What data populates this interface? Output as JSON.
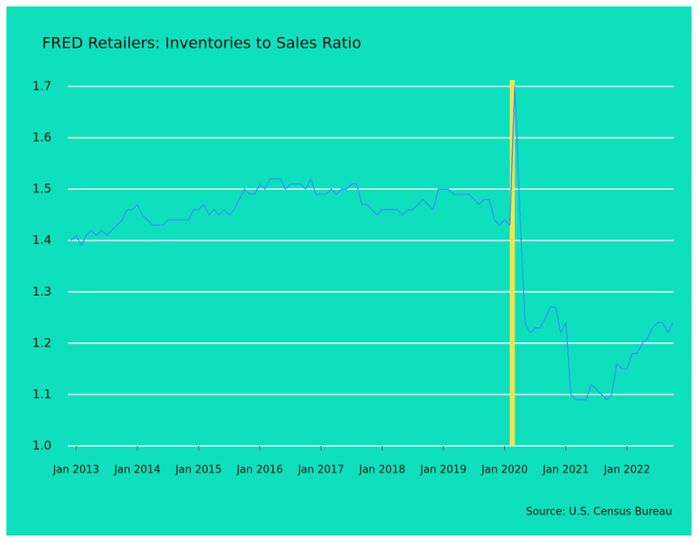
{
  "chart_data": {
    "type": "line",
    "title": "FRED Retailers: Inventories to Sales Ratio",
    "source": "Source: U.S. Census Bureau",
    "background": "#0ee0bd",
    "highlight": {
      "x": [
        "2020-02",
        "2020-03"
      ],
      "color": "#f7e24a"
    },
    "x": [
      "2012-12",
      "2013-01",
      "2013-02",
      "2013-03",
      "2013-04",
      "2013-05",
      "2013-06",
      "2013-07",
      "2013-08",
      "2013-09",
      "2013-10",
      "2013-11",
      "2013-12",
      "2014-01",
      "2014-02",
      "2014-03",
      "2014-04",
      "2014-05",
      "2014-06",
      "2014-07",
      "2014-08",
      "2014-09",
      "2014-10",
      "2014-11",
      "2014-12",
      "2015-01",
      "2015-02",
      "2015-03",
      "2015-04",
      "2015-05",
      "2015-06",
      "2015-07",
      "2015-08",
      "2015-09",
      "2015-10",
      "2015-11",
      "2015-12",
      "2016-01",
      "2016-02",
      "2016-03",
      "2016-04",
      "2016-05",
      "2016-06",
      "2016-07",
      "2016-08",
      "2016-09",
      "2016-10",
      "2016-11",
      "2016-12",
      "2017-01",
      "2017-02",
      "2017-03",
      "2017-04",
      "2017-05",
      "2017-06",
      "2017-07",
      "2017-08",
      "2017-09",
      "2017-10",
      "2017-11",
      "2017-12",
      "2018-01",
      "2018-02",
      "2018-03",
      "2018-04",
      "2018-05",
      "2018-06",
      "2018-07",
      "2018-08",
      "2018-09",
      "2018-10",
      "2018-11",
      "2018-12",
      "2019-01",
      "2019-02",
      "2019-03",
      "2019-04",
      "2019-05",
      "2019-06",
      "2019-07",
      "2019-08",
      "2019-09",
      "2019-10",
      "2019-11",
      "2019-12",
      "2020-01",
      "2020-02",
      "2020-03",
      "2020-04",
      "2020-05",
      "2020-06",
      "2020-07",
      "2020-08",
      "2020-09",
      "2020-10",
      "2020-11",
      "2020-12",
      "2021-01",
      "2021-02",
      "2021-03",
      "2021-04",
      "2021-05",
      "2021-06",
      "2021-07",
      "2021-08",
      "2021-09",
      "2021-10",
      "2021-11",
      "2021-12",
      "2022-01",
      "2022-02",
      "2022-03",
      "2022-04",
      "2022-05",
      "2022-06",
      "2022-07",
      "2022-08",
      "2022-09",
      "2022-10"
    ],
    "series": [
      {
        "color": "#2f9cf0",
        "values": [
          1.4,
          1.41,
          1.39,
          1.41,
          1.42,
          1.41,
          1.42,
          1.41,
          1.42,
          1.43,
          1.44,
          1.46,
          1.46,
          1.47,
          1.45,
          1.44,
          1.43,
          1.43,
          1.43,
          1.44,
          1.44,
          1.44,
          1.44,
          1.44,
          1.46,
          1.46,
          1.47,
          1.45,
          1.46,
          1.45,
          1.46,
          1.45,
          1.46,
          1.48,
          1.5,
          1.49,
          1.49,
          1.51,
          1.5,
          1.52,
          1.52,
          1.52,
          1.5,
          1.51,
          1.51,
          1.51,
          1.5,
          1.52,
          1.49,
          1.49,
          1.49,
          1.5,
          1.49,
          1.5,
          1.5,
          1.51,
          1.51,
          1.47,
          1.47,
          1.46,
          1.45,
          1.46,
          1.46,
          1.46,
          1.46,
          1.45,
          1.46,
          1.46,
          1.47,
          1.48,
          1.47,
          1.46,
          1.5,
          1.5,
          1.5,
          1.49,
          1.49,
          1.49,
          1.49,
          1.48,
          1.47,
          1.48,
          1.48,
          1.44,
          1.43,
          1.44,
          1.43,
          1.7,
          1.45,
          1.24,
          1.22,
          1.23,
          1.23,
          1.25,
          1.27,
          1.27,
          1.22,
          1.24,
          1.1,
          1.09,
          1.09,
          1.09,
          1.12,
          1.11,
          1.1,
          1.09,
          1.1,
          1.16,
          1.15,
          1.15,
          1.18,
          1.18,
          1.2,
          1.21,
          1.23,
          1.24,
          1.24,
          1.22,
          1.24
        ]
      }
    ],
    "xlim": [
      "2012-12",
      "2022-10"
    ],
    "xticks": [
      {
        "value": "2013-01",
        "label": "Jan 2013"
      },
      {
        "value": "2014-01",
        "label": "Jan 2014"
      },
      {
        "value": "2015-01",
        "label": "Jan 2015"
      },
      {
        "value": "2016-01",
        "label": "Jan 2016"
      },
      {
        "value": "2017-01",
        "label": "Jan 2017"
      },
      {
        "value": "2018-01",
        "label": "Jan 2018"
      },
      {
        "value": "2019-01",
        "label": "Jan 2019"
      },
      {
        "value": "2020-01",
        "label": "Jan 2020"
      },
      {
        "value": "2021-01",
        "label": "Jan 2021"
      },
      {
        "value": "2022-01",
        "label": "Jan 2022"
      }
    ],
    "ylim": [
      1.0,
      1.7
    ],
    "yticks": [
      {
        "value": 1.0,
        "label": "1.0"
      },
      1.1,
      1.2,
      1.3,
      1.4,
      1.5,
      1.6,
      1.7
    ],
    "grid": true
  }
}
